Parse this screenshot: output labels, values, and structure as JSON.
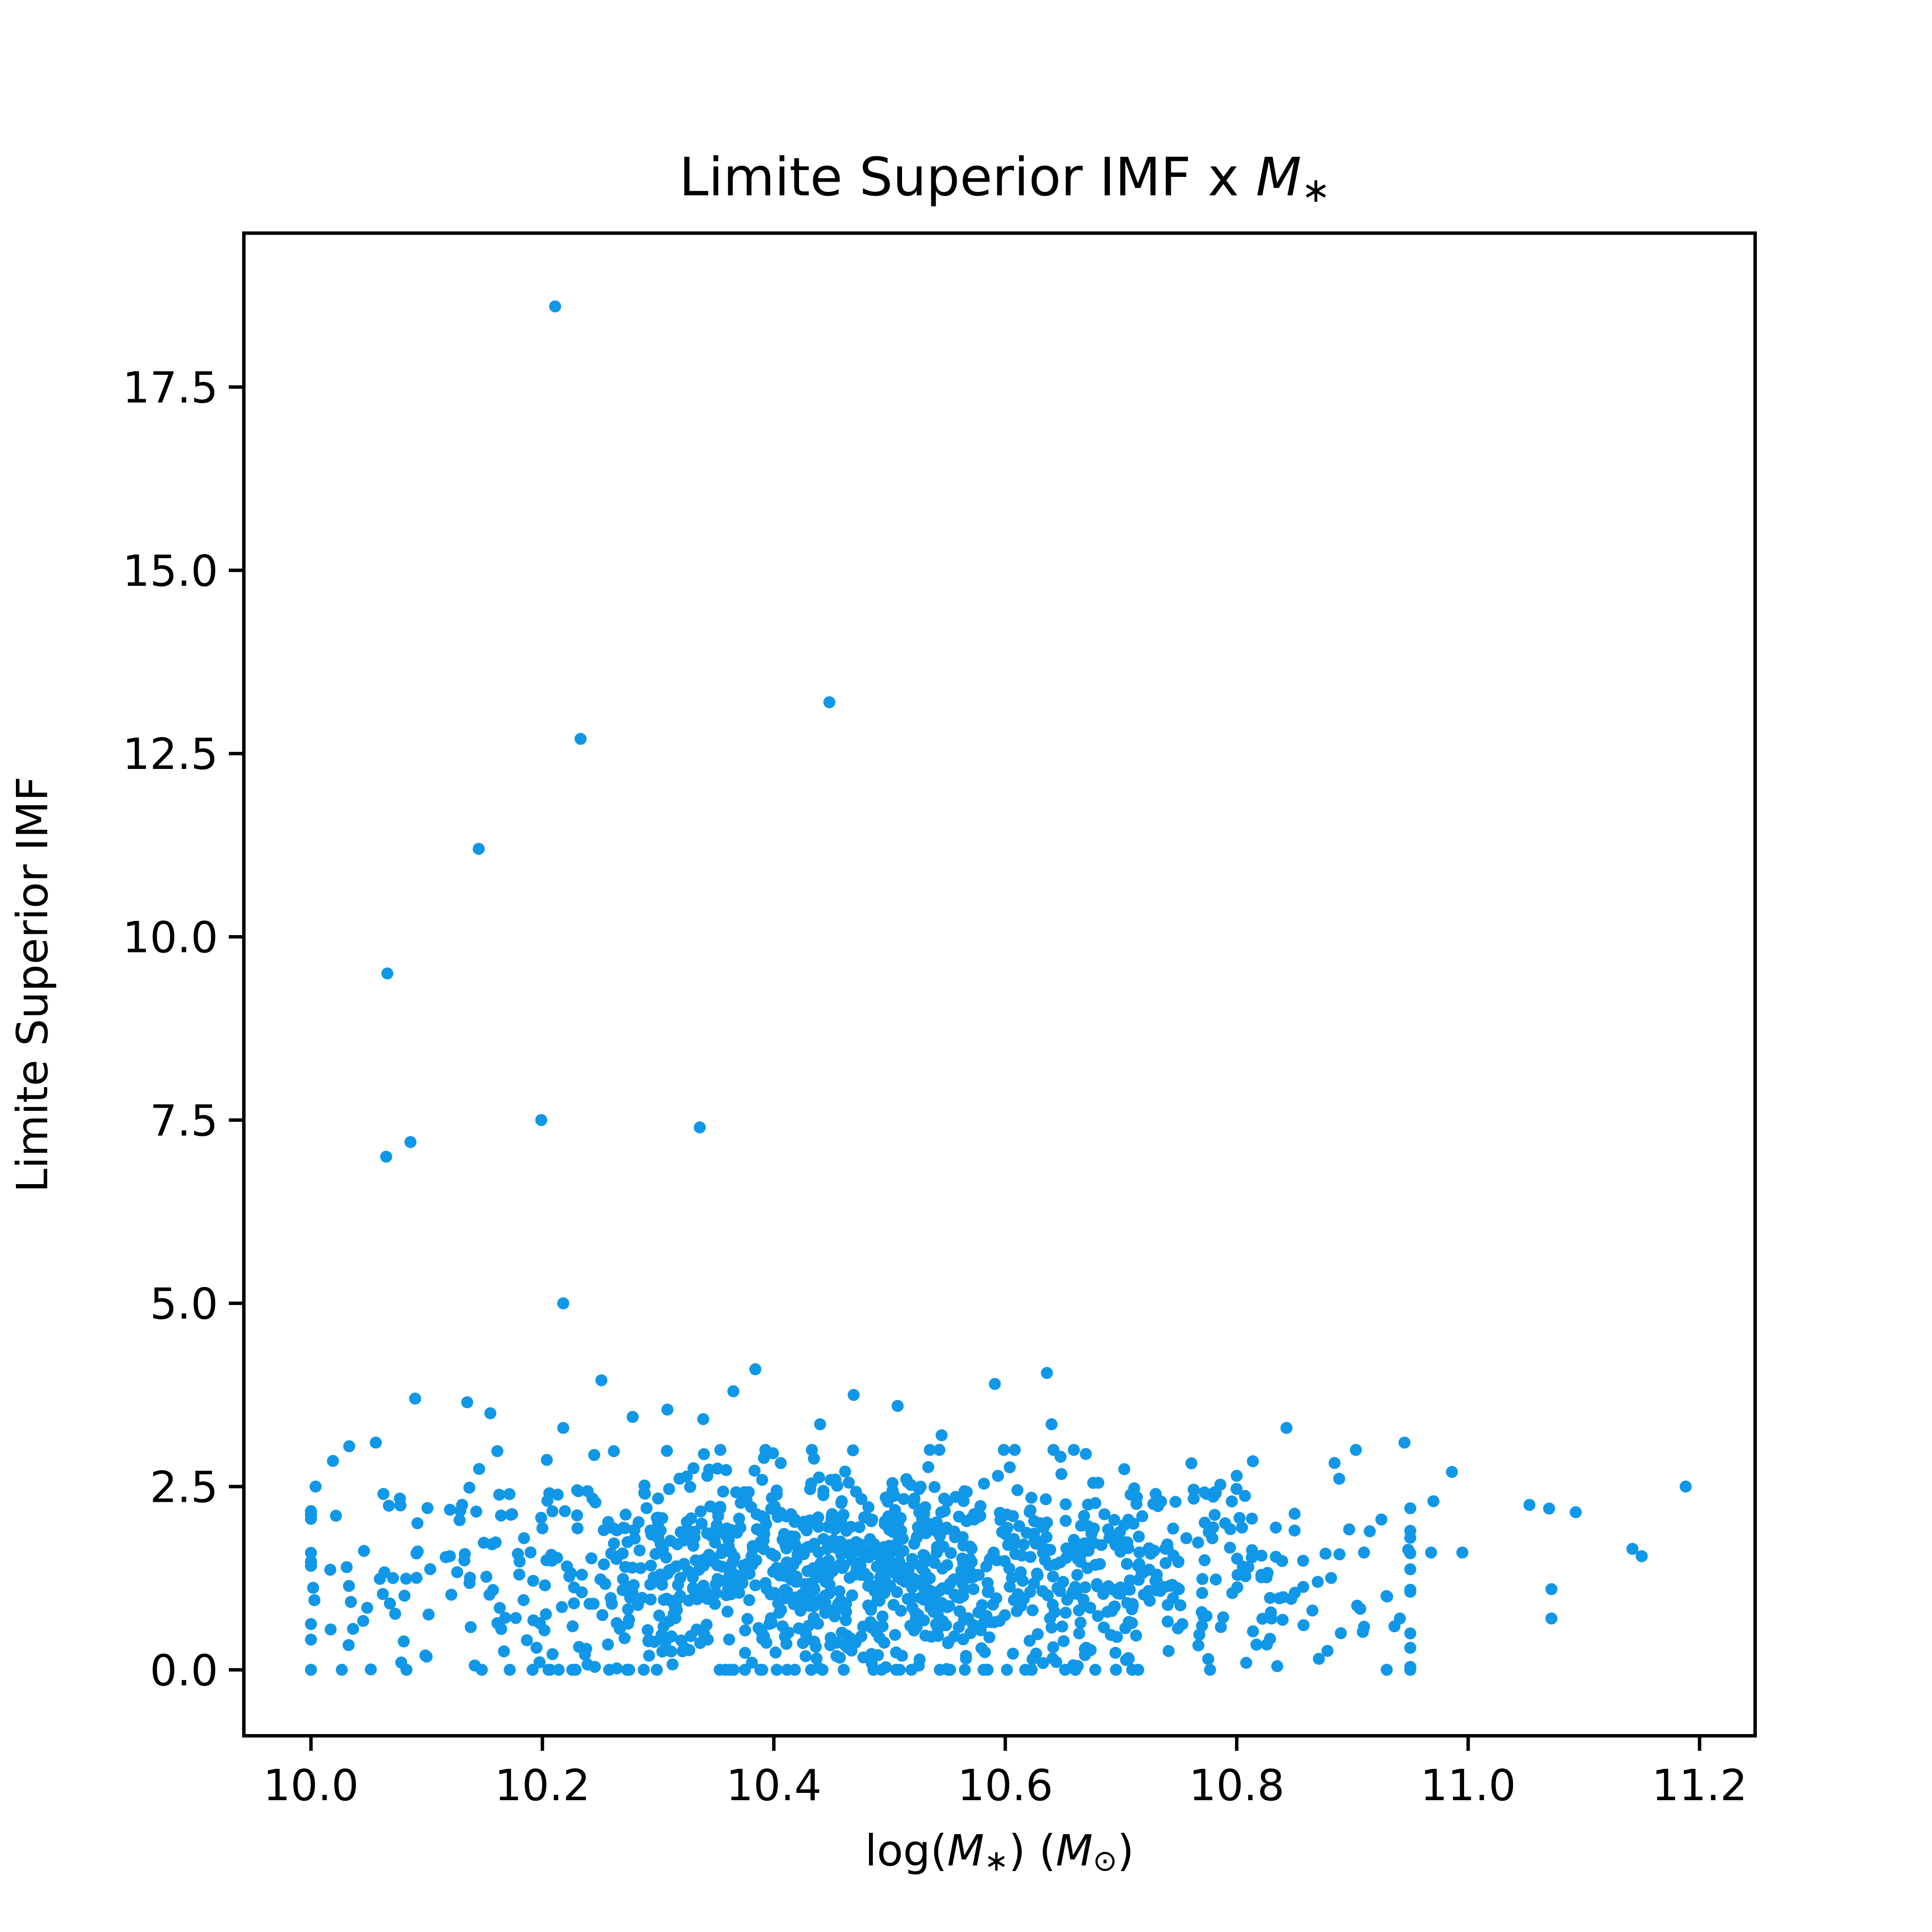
{
  "chart_data": {
    "type": "scatter",
    "title": {
      "main": "Limite Superior IMF x ",
      "math": "M",
      "sub": "∗"
    },
    "xlabel": {
      "prefix": "log(",
      "m1": "M",
      "s1": "∗",
      "mid": ") (",
      "m2": "M",
      "s2": "⊙",
      "suffix": ")"
    },
    "ylabel": "Limite Superior IMF",
    "xlim": [
      9.942,
      11.248
    ],
    "ylim": [
      -0.9,
      19.6
    ],
    "xticks": [
      10.0,
      10.2,
      10.4,
      10.6,
      10.8,
      11.0,
      11.2
    ],
    "xtick_labels": [
      "10.0",
      "10.2",
      "10.4",
      "10.6",
      "10.8",
      "11.0",
      "11.2"
    ],
    "yticks": [
      0.0,
      2.5,
      5.0,
      7.5,
      10.0,
      12.5,
      15.0,
      17.5
    ],
    "ytick_labels": [
      "0.0",
      "2.5",
      "5.0",
      "7.5",
      "10.0",
      "12.5",
      "15.0",
      "17.5"
    ],
    "grid": false,
    "legend": "none",
    "color": "#1197e8",
    "series": [
      {
        "points": [
          [
            10.211,
            18.6
          ],
          [
            10.448,
            13.2
          ],
          [
            10.233,
            12.7
          ],
          [
            10.145,
            11.2
          ],
          [
            10.066,
            9.5
          ],
          [
            10.199,
            7.5
          ],
          [
            10.336,
            7.4
          ],
          [
            10.086,
            7.2
          ],
          [
            10.065,
            7.0
          ],
          [
            10.218,
            5.0
          ],
          [
            10.384,
            4.1
          ],
          [
            10.636,
            4.05
          ],
          [
            10.251,
            3.95
          ],
          [
            10.591,
            3.9
          ],
          [
            10.365,
            3.8
          ],
          [
            10.469,
            3.75
          ],
          [
            10.09,
            3.7
          ],
          [
            10.135,
            3.65
          ],
          [
            10.507,
            3.6
          ],
          [
            10.308,
            3.55
          ],
          [
            10.155,
            3.5
          ],
          [
            10.278,
            3.45
          ],
          [
            10.339,
            3.42
          ],
          [
            10.64,
            3.35
          ],
          [
            10.843,
            3.3
          ],
          [
            10.218,
            3.3
          ],
          [
            10.44,
            3.35
          ],
          [
            10.545,
            3.2
          ],
          [
            10.033,
            3.05
          ],
          [
            10.056,
            3.1
          ],
          [
            10.945,
            3.1
          ],
          [
            10.019,
            2.85
          ],
          [
            10.903,
            3.0
          ],
          [
            10.986,
            2.7
          ],
          [
            11.188,
            2.5
          ],
          [
            11.053,
            2.25
          ],
          [
            11.07,
            2.2
          ],
          [
            11.093,
            2.15
          ],
          [
            11.142,
            1.65
          ],
          [
            11.15,
            1.55
          ],
          [
            11.072,
            1.1
          ],
          [
            11.072,
            0.7
          ],
          [
            10.995,
            1.6
          ],
          [
            10.968,
            1.6
          ],
          [
            10.941,
            0.7
          ],
          [
            10.871,
            0.15
          ],
          [
            10.835,
            0.05
          ],
          [
            10.004,
            2.5
          ],
          [
            10.003,
            0.95
          ],
          [
            10.017,
            0.55
          ],
          [
            10.078,
            0.1
          ],
          [
            10.092,
            2.0
          ],
          [
            10.12,
            1.55
          ],
          [
            10.18,
            1.3
          ],
          [
            10.23,
            2.45
          ],
          [
            10.26,
            0.9
          ],
          [
            10.3,
            1.8
          ],
          [
            10.32,
            0.4
          ],
          [
            10.35,
            2.2
          ],
          [
            10.37,
            1.05
          ],
          [
            10.39,
            0.0
          ],
          [
            10.41,
            1.7
          ],
          [
            10.43,
            0.6
          ],
          [
            10.45,
            2.1
          ],
          [
            10.47,
            1.3
          ],
          [
            10.49,
            0.2
          ],
          [
            10.51,
            1.9
          ],
          [
            10.53,
            1.0
          ],
          [
            10.55,
            2.3
          ],
          [
            10.57,
            0.5
          ],
          [
            10.59,
            1.6
          ],
          [
            10.61,
            0.8
          ],
          [
            10.63,
            2.0
          ],
          [
            10.65,
            1.2
          ],
          [
            10.67,
            0.3
          ],
          [
            10.69,
            1.8
          ],
          [
            10.71,
            0.9
          ],
          [
            10.73,
            2.4
          ],
          [
            10.75,
            1.1
          ],
          [
            10.77,
            0.6
          ],
          [
            10.79,
            2.0
          ],
          [
            10.81,
            1.4
          ],
          [
            10.83,
            0.7
          ],
          [
            10.85,
            1.9
          ],
          [
            10.87,
            1.2
          ],
          [
            10.89,
            0.5
          ],
          [
            10.91,
            1.6
          ],
          [
            10.93,
            1.0
          ],
          [
            10.95,
            0.3
          ],
          [
            10.97,
            2.3
          ]
        ],
        "cluster": {
          "note": "dense scatter of approximately 1200 further points, x within 10.0–10.95 (densest near 10.35–10.7), y within 0.0–3.0 (densest near 0.8–2.0)",
          "count": 1200,
          "x_center": 10.48,
          "x_spread": 0.2,
          "x_range": [
            10.0,
            10.95
          ],
          "y_center": 1.3,
          "y_spread": 0.75,
          "y_range": [
            0.0,
            3.0
          ]
        }
      }
    ]
  }
}
